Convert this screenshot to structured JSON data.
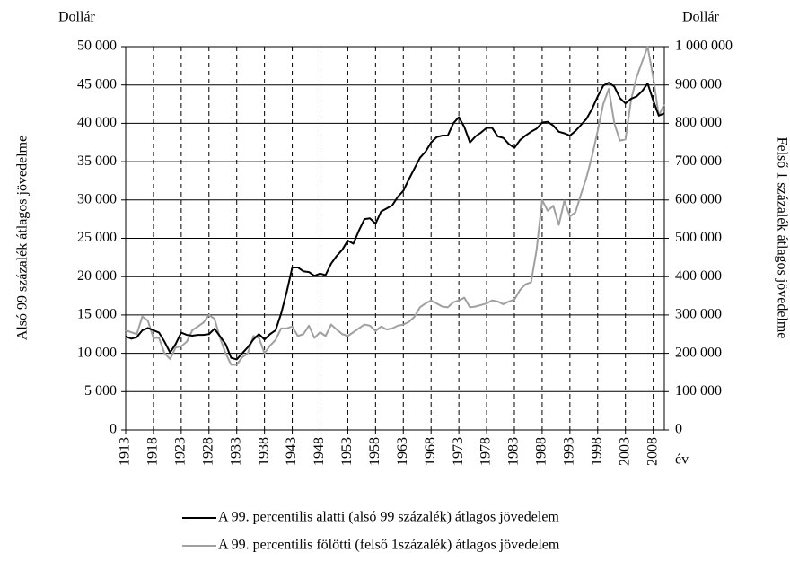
{
  "chart_data": {
    "type": "line",
    "y_label_top": "Dollár",
    "y2_label_top": "Dollár",
    "y_label": "Alsó 99 százalék átlagos jövedelme",
    "y2_label": "Felső 1 százalék átlagos jövedelme",
    "x_label": "év",
    "x": [
      1913,
      1914,
      1915,
      1916,
      1917,
      1918,
      1919,
      1920,
      1921,
      1922,
      1923,
      1924,
      1925,
      1926,
      1927,
      1928,
      1929,
      1930,
      1931,
      1932,
      1933,
      1934,
      1935,
      1936,
      1937,
      1938,
      1939,
      1940,
      1941,
      1942,
      1943,
      1944,
      1945,
      1946,
      1947,
      1948,
      1949,
      1950,
      1951,
      1952,
      1953,
      1954,
      1955,
      1956,
      1957,
      1958,
      1959,
      1960,
      1961,
      1962,
      1963,
      1964,
      1965,
      1966,
      1967,
      1968,
      1969,
      1970,
      1971,
      1972,
      1973,
      1974,
      1975,
      1976,
      1977,
      1978,
      1979,
      1980,
      1981,
      1982,
      1983,
      1984,
      1985,
      1986,
      1987,
      1988,
      1989,
      1990,
      1991,
      1992,
      1993,
      1994,
      1995,
      1996,
      1997,
      1998,
      1999,
      2000,
      2001,
      2002,
      2003,
      2004,
      2005,
      2006,
      2007,
      2008,
      2009,
      2010
    ],
    "xlim": [
      1913,
      2010
    ],
    "xticks": [
      1913,
      1918,
      1923,
      1928,
      1933,
      1938,
      1943,
      1948,
      1953,
      1958,
      1963,
      1968,
      1973,
      1978,
      1983,
      1988,
      1993,
      1998,
      2003,
      2008
    ],
    "ylim": [
      0,
      50000
    ],
    "yticks": [
      0,
      {
        "value": 5000,
        "label": "5 000"
      },
      {
        "value": 10000,
        "label": "10 000"
      },
      {
        "value": 15000,
        "label": "15 000"
      },
      {
        "value": 20000,
        "label": "20 000"
      },
      {
        "value": 25000,
        "label": "25 000"
      },
      {
        "value": 30000,
        "label": "30 000"
      },
      {
        "value": 35000,
        "label": "35 000"
      },
      {
        "value": 40000,
        "label": "40 000"
      },
      {
        "value": 45000,
        "label": "45 000"
      },
      {
        "value": 50000,
        "label": "50 000"
      }
    ],
    "y2lim": [
      0,
      1000000
    ],
    "y2ticks": [
      0,
      {
        "value": 100000,
        "label": "100 000"
      },
      {
        "value": 200000,
        "label": "200 000"
      },
      {
        "value": 300000,
        "label": "300 000"
      },
      {
        "value": 400000,
        "label": "400 000"
      },
      {
        "value": 500000,
        "label": "500 000"
      },
      {
        "value": 600000,
        "label": "600 000"
      },
      {
        "value": 700000,
        "label": "700 000"
      },
      {
        "value": 800000,
        "label": "800 000"
      },
      {
        "value": 900000,
        "label": "900 000"
      },
      {
        "value": 1000000,
        "label": "1 000 000"
      }
    ],
    "grid": true,
    "series": [
      {
        "name": "A 99. percentilis alatti (alsó 99 százalék) átlagos jövedelem",
        "color": "#000000",
        "values": [
          12200,
          11900,
          12100,
          13000,
          13300,
          13000,
          12700,
          11500,
          10100,
          11200,
          12700,
          12400,
          12300,
          12400,
          12400,
          12500,
          13200,
          12200,
          11200,
          9400,
          9200,
          10000,
          10800,
          11800,
          12500,
          11800,
          12500,
          13000,
          15200,
          18000,
          21200,
          21200,
          20700,
          20600,
          20100,
          20400,
          20200,
          21700,
          22700,
          23500,
          24700,
          24300,
          26000,
          27500,
          27600,
          26900,
          28500,
          28900,
          29300,
          30400,
          31200,
          32700,
          34100,
          35500,
          36300,
          37500,
          38200,
          38400,
          38400,
          40000,
          40800,
          39500,
          37500,
          38300,
          38800,
          39400,
          39400,
          38300,
          38100,
          37300,
          36800,
          37800,
          38400,
          38900,
          39300,
          40100,
          40200,
          39700,
          38900,
          38700,
          38400,
          39000,
          39800,
          40600,
          41900,
          43500,
          44900,
          45300,
          44800,
          43300,
          42600,
          43200,
          43500,
          44200,
          45200,
          43000,
          41000,
          41300
        ]
      },
      {
        "name": "A 99. percentilis fölötti (felső 1százalék) átlagos jövedelem",
        "color": "#a0a0a0",
        "axis": "y2",
        "values": [
          260000,
          255000,
          250000,
          296000,
          285000,
          240000,
          240000,
          200000,
          185000,
          215000,
          218000,
          230000,
          260000,
          270000,
          280000,
          300000,
          290000,
          240000,
          200000,
          170000,
          170000,
          190000,
          200000,
          245000,
          240000,
          200000,
          220000,
          235000,
          265000,
          265000,
          270000,
          245000,
          250000,
          272000,
          240000,
          255000,
          245000,
          275000,
          262000,
          250000,
          245000,
          255000,
          265000,
          275000,
          272000,
          258000,
          270000,
          262000,
          265000,
          272000,
          275000,
          282000,
          295000,
          320000,
          330000,
          338000,
          330000,
          322000,
          320000,
          333000,
          338000,
          345000,
          320000,
          322000,
          326000,
          330000,
          338000,
          335000,
          328000,
          335000,
          340000,
          365000,
          380000,
          385000,
          470000,
          600000,
          572000,
          585000,
          535000,
          598000,
          557000,
          568000,
          615000,
          660000,
          715000,
          780000,
          850000,
          890000,
          800000,
          755000,
          758000,
          860000,
          920000,
          960000,
          1000000,
          920000,
          820000,
          850000
        ]
      }
    ]
  }
}
